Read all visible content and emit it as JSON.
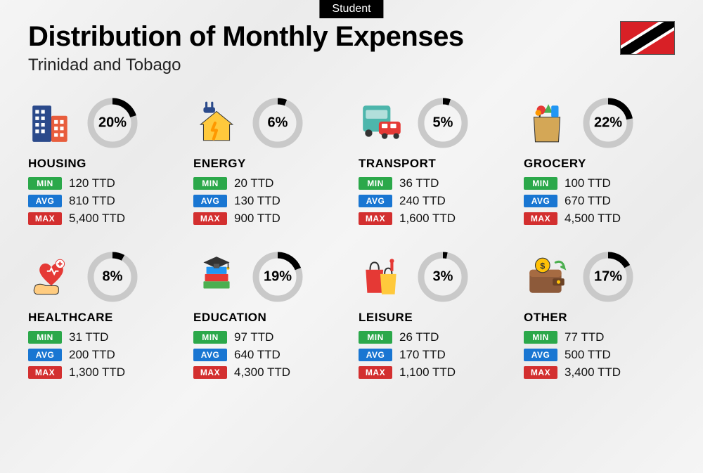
{
  "badge": "Student",
  "title": "Distribution of Monthly Expenses",
  "subtitle": "Trinidad and Tobago",
  "currency": "TTD",
  "labels": {
    "min": "MIN",
    "avg": "AVG",
    "max": "MAX"
  },
  "colors": {
    "min_bg": "#2BA84A",
    "avg_bg": "#1976D2",
    "max_bg": "#D32F2F",
    "donut_track": "#c9c9c9",
    "donut_fill": "#000000"
  },
  "categories": [
    {
      "name": "HOUSING",
      "icon": "buildings",
      "percent": 20,
      "min": "120 TTD",
      "avg": "810 TTD",
      "max": "5,400 TTD"
    },
    {
      "name": "ENERGY",
      "icon": "house-plug",
      "percent": 6,
      "min": "20 TTD",
      "avg": "130 TTD",
      "max": "900 TTD"
    },
    {
      "name": "TRANSPORT",
      "icon": "bus-car",
      "percent": 5,
      "min": "36 TTD",
      "avg": "240 TTD",
      "max": "1,600 TTD"
    },
    {
      "name": "GROCERY",
      "icon": "grocery-bag",
      "percent": 22,
      "min": "100 TTD",
      "avg": "670 TTD",
      "max": "4,500 TTD"
    },
    {
      "name": "HEALTHCARE",
      "icon": "heart-hand",
      "percent": 8,
      "min": "31 TTD",
      "avg": "200 TTD",
      "max": "1,300 TTD"
    },
    {
      "name": "EDUCATION",
      "icon": "grad-books",
      "percent": 19,
      "min": "97 TTD",
      "avg": "640 TTD",
      "max": "4,300 TTD"
    },
    {
      "name": "LEISURE",
      "icon": "shopping",
      "percent": 3,
      "min": "26 TTD",
      "avg": "170 TTD",
      "max": "1,100 TTD"
    },
    {
      "name": "OTHER",
      "icon": "wallet",
      "percent": 17,
      "min": "77 TTD",
      "avg": "500 TTD",
      "max": "3,400 TTD"
    }
  ]
}
